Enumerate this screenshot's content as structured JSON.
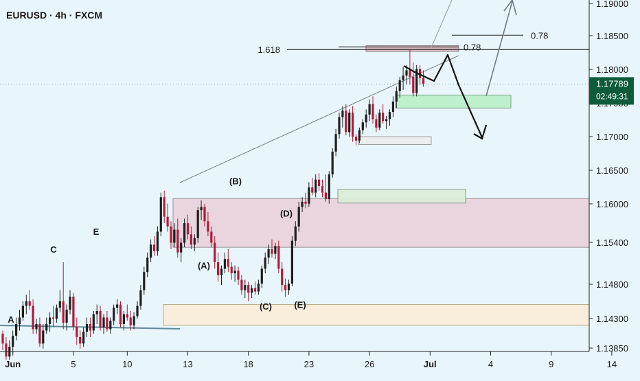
{
  "header": {
    "symbol": "EURUSD",
    "interval": "4h",
    "source": "FXCM",
    "title": "EURUSD · 4h · FXCM"
  },
  "colors": {
    "background": "#e8f6fb",
    "bull": "#1f1f1f",
    "bear": "#b11a3a",
    "last_price_badge": "#0d5b3a",
    "demand_zone": "#dcedd9",
    "resistance_zone": "#e8b9c4",
    "support_zone": "#fbecd6"
  },
  "chart_data": {
    "type": "candlestick",
    "title": "EURUSD · 4h · FXCM",
    "ylim": [
      1.1372,
      1.1906
    ],
    "y_ticks": [
      "1.19000",
      "1.18500",
      "1.18000",
      "1.17500",
      "1.17000",
      "1.16500",
      "1.16000",
      "1.15400",
      "1.14800",
      "1.14300",
      "1.13850"
    ],
    "x_ticks": [
      "Jun",
      "5",
      "10",
      "13",
      "18",
      "23",
      "26",
      "Jul",
      "4",
      "9",
      "14"
    ],
    "x_tick_index": [
      3,
      21,
      37,
      55,
      73,
      91,
      109,
      127,
      145,
      163,
      181
    ],
    "last_price": {
      "value": "1.17789",
      "countdown": "02:49:31"
    },
    "hidden_tick": "1.17500",
    "candles_ohlc": [
      [
        1.1395,
        1.14,
        1.137,
        1.138
      ],
      [
        1.138,
        1.139,
        1.1355,
        1.136
      ],
      [
        1.136,
        1.1385,
        1.1355,
        1.1375
      ],
      [
        1.1375,
        1.14,
        1.1365,
        1.1392
      ],
      [
        1.1392,
        1.142,
        1.1385,
        1.141
      ],
      [
        1.141,
        1.1432,
        1.14,
        1.142
      ],
      [
        1.142,
        1.1445,
        1.1415,
        1.1438
      ],
      [
        1.1438,
        1.1455,
        1.1425,
        1.1445
      ],
      [
        1.1445,
        1.1462,
        1.1432,
        1.1438
      ],
      [
        1.1438,
        1.1448,
        1.1395,
        1.1402
      ],
      [
        1.1402,
        1.1418,
        1.1395,
        1.141
      ],
      [
        1.141,
        1.142,
        1.1375,
        1.138
      ],
      [
        1.138,
        1.141,
        1.1372,
        1.14
      ],
      [
        1.14,
        1.142,
        1.1395,
        1.141
      ],
      [
        1.141,
        1.1428,
        1.1398,
        1.142
      ],
      [
        1.142,
        1.1438,
        1.1405,
        1.1418
      ],
      [
        1.1418,
        1.144,
        1.1412,
        1.1435
      ],
      [
        1.1435,
        1.1462,
        1.1428,
        1.1445
      ],
      [
        1.1445,
        1.1505,
        1.1402,
        1.1412
      ],
      [
        1.1412,
        1.144,
        1.14,
        1.1432
      ],
      [
        1.1432,
        1.1462,
        1.1425,
        1.1452
      ],
      [
        1.1452,
        1.1458,
        1.14,
        1.1406
      ],
      [
        1.1406,
        1.142,
        1.1378,
        1.139
      ],
      [
        1.139,
        1.14,
        1.1372,
        1.138
      ],
      [
        1.138,
        1.1405,
        1.1375,
        1.1398
      ],
      [
        1.1398,
        1.142,
        1.139,
        1.141
      ],
      [
        1.141,
        1.142,
        1.139,
        1.14
      ],
      [
        1.14,
        1.143,
        1.1395,
        1.1425
      ],
      [
        1.1425,
        1.144,
        1.141,
        1.143
      ],
      [
        1.143,
        1.1438,
        1.14,
        1.1405
      ],
      [
        1.1405,
        1.1425,
        1.1395,
        1.142
      ],
      [
        1.142,
        1.143,
        1.1398,
        1.1402
      ],
      [
        1.1402,
        1.142,
        1.1395,
        1.1415
      ],
      [
        1.1415,
        1.144,
        1.1408,
        1.1435
      ],
      [
        1.1435,
        1.1448,
        1.1425,
        1.144
      ],
      [
        1.144,
        1.1445,
        1.1405,
        1.141
      ],
      [
        1.141,
        1.143,
        1.14,
        1.1425
      ],
      [
        1.1425,
        1.144,
        1.1415,
        1.142
      ],
      [
        1.142,
        1.143,
        1.14,
        1.1408
      ],
      [
        1.1408,
        1.1428,
        1.1402,
        1.1422
      ],
      [
        1.1422,
        1.1445,
        1.1418,
        1.1438
      ],
      [
        1.1438,
        1.147,
        1.1432,
        1.1462
      ],
      [
        1.1462,
        1.1498,
        1.1455,
        1.149
      ],
      [
        1.149,
        1.152,
        1.1482,
        1.1512
      ],
      [
        1.1512,
        1.154,
        1.1505,
        1.1532
      ],
      [
        1.1532,
        1.1545,
        1.1515,
        1.1522
      ],
      [
        1.1522,
        1.156,
        1.1515,
        1.1552
      ],
      [
        1.1552,
        1.1612,
        1.1545,
        1.1605
      ],
      [
        1.1605,
        1.1615,
        1.1565,
        1.1575
      ],
      [
        1.1575,
        1.1595,
        1.1552,
        1.156
      ],
      [
        1.156,
        1.1568,
        1.1525,
        1.1535
      ],
      [
        1.1535,
        1.1565,
        1.1528,
        1.1555
      ],
      [
        1.1555,
        1.1572,
        1.1512,
        1.152
      ],
      [
        1.152,
        1.1542,
        1.1505,
        1.1535
      ],
      [
        1.1535,
        1.1572,
        1.1528,
        1.1565
      ],
      [
        1.1565,
        1.1578,
        1.154,
        1.1548
      ],
      [
        1.1548,
        1.156,
        1.1525,
        1.1532
      ],
      [
        1.1532,
        1.1548,
        1.1522,
        1.1542
      ],
      [
        1.1542,
        1.159,
        1.1535,
        1.1585
      ],
      [
        1.1585,
        1.16,
        1.157,
        1.159
      ],
      [
        1.159,
        1.1595,
        1.156,
        1.1568
      ],
      [
        1.1568,
        1.1582,
        1.1545,
        1.1552
      ],
      [
        1.1552,
        1.156,
        1.1528,
        1.1535
      ],
      [
        1.1535,
        1.1545,
        1.1495,
        1.1505
      ],
      [
        1.1505,
        1.152,
        1.1475,
        1.1485
      ],
      [
        1.1485,
        1.15,
        1.147,
        1.1495
      ],
      [
        1.1495,
        1.152,
        1.1488,
        1.151
      ],
      [
        1.151,
        1.1525,
        1.149,
        1.1498
      ],
      [
        1.1498,
        1.1505,
        1.1478,
        1.1488
      ],
      [
        1.1488,
        1.15,
        1.1475,
        1.1492
      ],
      [
        1.1492,
        1.1498,
        1.147,
        1.1478
      ],
      [
        1.1478,
        1.1485,
        1.1455,
        1.1462
      ],
      [
        1.1462,
        1.1478,
        1.145,
        1.147
      ],
      [
        1.147,
        1.1475,
        1.1445,
        1.1458
      ],
      [
        1.1458,
        1.147,
        1.145,
        1.1465
      ],
      [
        1.1465,
        1.1475,
        1.1455,
        1.146
      ],
      [
        1.146,
        1.1478,
        1.1455,
        1.1472
      ],
      [
        1.1472,
        1.15,
        1.1465,
        1.1495
      ],
      [
        1.1495,
        1.152,
        1.1488,
        1.1512
      ],
      [
        1.1512,
        1.1532,
        1.1502,
        1.1525
      ],
      [
        1.1525,
        1.154,
        1.1512,
        1.1518
      ],
      [
        1.1518,
        1.1535,
        1.151,
        1.153
      ],
      [
        1.153,
        1.1538,
        1.1488,
        1.1495
      ],
      [
        1.1495,
        1.1505,
        1.146,
        1.147
      ],
      [
        1.147,
        1.148,
        1.1452,
        1.1462
      ],
      [
        1.1462,
        1.1478,
        1.1455,
        1.1472
      ],
      [
        1.1472,
        1.1545,
        1.1468,
        1.1538
      ],
      [
        1.1538,
        1.1568,
        1.153,
        1.156
      ],
      [
        1.156,
        1.1598,
        1.1552,
        1.159
      ],
      [
        1.159,
        1.1605,
        1.1582,
        1.1598
      ],
      [
        1.1598,
        1.1612,
        1.1588,
        1.1595
      ],
      [
        1.1595,
        1.1628,
        1.159,
        1.162
      ],
      [
        1.162,
        1.1635,
        1.1608,
        1.1612
      ],
      [
        1.1612,
        1.164,
        1.1605,
        1.1632
      ],
      [
        1.1632,
        1.1642,
        1.1615,
        1.1622
      ],
      [
        1.1622,
        1.1632,
        1.1605,
        1.1612
      ],
      [
        1.1612,
        1.164,
        1.1598,
        1.1602
      ],
      [
        1.1602,
        1.1645,
        1.1595,
        1.164
      ],
      [
        1.164,
        1.168,
        1.1635,
        1.1675
      ],
      [
        1.1675,
        1.171,
        1.1668,
        1.1702
      ],
      [
        1.1702,
        1.1735,
        1.1695,
        1.1728
      ],
      [
        1.1728,
        1.1745,
        1.1712,
        1.1738
      ],
      [
        1.1738,
        1.1748,
        1.17,
        1.1705
      ],
      [
        1.1705,
        1.174,
        1.1698,
        1.1735
      ],
      [
        1.1735,
        1.1745,
        1.169,
        1.1698
      ],
      [
        1.1698,
        1.1702,
        1.1685,
        1.1692
      ],
      [
        1.1692,
        1.1712,
        1.1688,
        1.1708
      ],
      [
        1.1708,
        1.1725,
        1.1702,
        1.172
      ],
      [
        1.172,
        1.174,
        1.1712,
        1.1732
      ],
      [
        1.1732,
        1.1755,
        1.1722,
        1.1748
      ],
      [
        1.1748,
        1.176,
        1.1718,
        1.1725
      ],
      [
        1.1725,
        1.1732,
        1.1705,
        1.1712
      ],
      [
        1.1712,
        1.174,
        1.1708,
        1.1735
      ],
      [
        1.1735,
        1.1748,
        1.1718,
        1.1722
      ],
      [
        1.1722,
        1.173,
        1.171,
        1.1725
      ],
      [
        1.1725,
        1.174,
        1.1715,
        1.1736
      ],
      [
        1.1736,
        1.176,
        1.1728,
        1.1752
      ],
      [
        1.1752,
        1.1775,
        1.1742,
        1.1768
      ],
      [
        1.1768,
        1.179,
        1.1758,
        1.1785
      ],
      [
        1.1785,
        1.1805,
        1.177,
        1.1792
      ],
      [
        1.1792,
        1.1808,
        1.1778,
        1.18
      ],
      [
        1.18,
        1.1832,
        1.1778,
        1.179
      ],
      [
        1.179,
        1.1812,
        1.176,
        1.1765
      ],
      [
        1.1765,
        1.1808,
        1.176,
        1.1802
      ],
      [
        1.1802,
        1.1808,
        1.1778,
        1.1788
      ],
      [
        1.1788,
        1.18,
        1.1775,
        1.1779
      ]
    ],
    "zones": [
      {
        "name": "support-zone",
        "from": 1.1408,
        "to": 1.144,
        "label": ""
      },
      {
        "name": "resistance-zone",
        "from": 1.1528,
        "to": 1.1603,
        "label": ""
      },
      {
        "name": "demand-zone-1",
        "from": 1.1596,
        "to": 1.1617,
        "label": ""
      },
      {
        "name": "demand-zone-2",
        "from": 1.1742,
        "to": 1.1762,
        "label": ""
      },
      {
        "name": "neutral-zone",
        "from": 1.1686,
        "to": 1.1698,
        "label": ""
      },
      {
        "name": "target-zone",
        "from": 1.1829,
        "to": 1.1838,
        "label": ""
      }
    ],
    "levels": [
      {
        "label": "1.618",
        "value": 1.1832
      },
      {
        "label": "0.78",
        "value": 1.1836
      },
      {
        "label": "0.78",
        "value": 1.1854
      }
    ],
    "wave_labels": [
      {
        "label": "A",
        "x": 16,
        "y": 1.1412
      },
      {
        "label": "C",
        "x": 78,
        "y": 1.152
      },
      {
        "label": "E",
        "x": 140,
        "y": 1.1547
      },
      {
        "label": "(A)",
        "x": 297,
        "y": 1.1495
      },
      {
        "label": "(B)",
        "x": 343,
        "y": 1.1625
      },
      {
        "label": "(C)",
        "x": 387,
        "y": 1.1432
      },
      {
        "label": "(D)",
        "x": 417,
        "y": 1.1575
      },
      {
        "label": "(E)",
        "x": 437,
        "y": 1.1435
      }
    ]
  }
}
